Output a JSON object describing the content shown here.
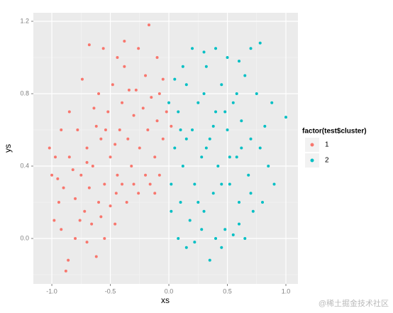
{
  "chart_data": {
    "type": "scatter",
    "x_label": "xs",
    "y_label": "ys",
    "xlim": [
      -1.158,
      1.103
    ],
    "ylim": [
      -0.251,
      1.247
    ],
    "xticks": [
      {
        "value": -1,
        "label": "-1.0"
      },
      {
        "value": -0.5,
        "label": "-0.5"
      },
      {
        "value": 0,
        "label": "0.0"
      },
      {
        "value": 0.5,
        "label": "0.5"
      },
      {
        "value": 1,
        "label": "1.0"
      }
    ],
    "yticks": [
      {
        "value": 0,
        "label": "0.0"
      },
      {
        "value": 0.4,
        "label": "0.4"
      },
      {
        "value": 0.8,
        "label": "0.8"
      },
      {
        "value": 1.2,
        "label": "1.2"
      }
    ],
    "x_minor_breaks": [
      -0.75,
      -0.25,
      0.25,
      0.75
    ],
    "y_minor_breaks": [
      -0.2,
      0.2,
      0.6,
      1.0
    ],
    "grid": true,
    "legend_title": "factor(test$cluster)",
    "legend_position": "right",
    "series": [
      {
        "name": "1",
        "color": "#F8766D",
        "x": [
          -0.95,
          -0.9,
          -0.85,
          -0.8,
          -0.78,
          -0.75,
          -0.72,
          -0.7,
          -0.68,
          -0.65,
          -0.62,
          -0.6,
          -0.58,
          -0.55,
          -0.52,
          -0.5,
          -0.48,
          -0.45,
          -0.42,
          -0.4,
          -0.38,
          -0.35,
          -0.32,
          -0.3,
          -0.28,
          -0.25,
          -0.22,
          -0.2,
          -0.18,
          -0.15,
          -0.12,
          -0.1,
          -0.08,
          -0.05,
          -0.02,
          0.02,
          -1.02,
          -0.98,
          -0.92,
          -0.88,
          -0.86,
          -0.8,
          -0.76,
          -0.7,
          -0.66,
          -0.62,
          -0.58,
          -0.55,
          -0.5,
          -0.46,
          -0.44,
          -0.4,
          -0.36,
          -0.3,
          -0.26,
          -0.2,
          -0.16,
          -0.12,
          -0.08,
          -0.85,
          -0.74,
          -0.68,
          -0.6,
          -0.56,
          -0.44,
          -0.38,
          -0.26,
          -0.17,
          -0.1,
          -0.05,
          -0.92,
          -0.97,
          -1.0,
          -0.94,
          -0.64,
          -0.46,
          -0.34,
          -0.54,
          -0.7,
          -0.82
        ],
        "values": [
          0.33,
          0.28,
          0.45,
          0.22,
          0.6,
          0.35,
          0.15,
          0.5,
          0.28,
          0.4,
          0.62,
          0.2,
          0.55,
          0.3,
          0.7,
          0.45,
          0.85,
          0.25,
          0.6,
          0.75,
          0.95,
          0.55,
          0.4,
          0.68,
          0.82,
          0.5,
          0.72,
          0.9,
          0.6,
          0.78,
          0.45,
          0.65,
          0.8,
          0.55,
          0.7,
          0.62,
          0.5,
          0.1,
          0.05,
          -0.18,
          -0.12,
          0.0,
          0.1,
          -0.02,
          0.08,
          -0.1,
          0.12,
          0.0,
          0.18,
          0.08,
          0.35,
          0.3,
          0.2,
          0.3,
          0.25,
          0.35,
          0.3,
          0.25,
          0.35,
          0.7,
          0.88,
          1.07,
          0.8,
          1.05,
          1.0,
          1.09,
          1.05,
          1.18,
          1.0,
          0.88,
          0.6,
          0.45,
          0.35,
          0.2,
          0.72,
          0.52,
          0.82,
          0.6,
          0.42,
          0.38
        ]
      },
      {
        "name": "2",
        "color": "#00BFC4",
        "x": [
          0.02,
          0.05,
          0.08,
          0.1,
          0.12,
          0.15,
          0.18,
          0.2,
          0.22,
          0.25,
          0.28,
          0.3,
          0.32,
          0.35,
          0.38,
          0.4,
          0.42,
          0.45,
          0.48,
          0.5,
          0.52,
          0.55,
          0.58,
          0.6,
          0.62,
          0.65,
          0.68,
          0.7,
          0.72,
          0.75,
          0.78,
          0.82,
          0.85,
          0.9,
          1.0,
          0.78,
          0.7,
          0.6,
          0.5,
          0.4,
          0.2,
          0.3,
          0.12,
          0.05,
          0.0,
          0.02,
          0.08,
          0.15,
          0.22,
          0.28,
          0.35,
          0.4,
          0.45,
          0.55,
          0.6,
          0.65,
          0.25,
          0.32,
          0.38,
          0.45,
          0.52,
          0.58,
          0.15,
          0.1,
          0.3,
          0.48,
          0.62,
          0.7,
          0.8,
          0.88
        ],
        "values": [
          0.3,
          0.5,
          0.7,
          0.2,
          0.4,
          0.85,
          0.1,
          0.6,
          0.3,
          0.75,
          0.45,
          0.15,
          0.95,
          0.55,
          0.25,
          0.7,
          0.4,
          0.85,
          0.05,
          0.6,
          0.3,
          0.75,
          0.45,
          0.2,
          0.65,
          0.9,
          0.35,
          0.55,
          0.15,
          0.8,
          0.5,
          0.62,
          0.4,
          0.3,
          0.67,
          1.08,
          1.05,
          0.98,
          1.0,
          1.05,
          1.05,
          1.03,
          0.95,
          0.88,
          0.75,
          0.15,
          0.0,
          -0.05,
          -0.02,
          0.05,
          -0.12,
          0.0,
          -0.05,
          0.02,
          0.08,
          0.0,
          0.2,
          0.5,
          0.62,
          0.3,
          0.45,
          0.8,
          0.55,
          0.6,
          0.8,
          0.7,
          0.5,
          0.25,
          0.2,
          0.75
        ]
      }
    ]
  },
  "watermark": "@稀土掘金技术社区"
}
